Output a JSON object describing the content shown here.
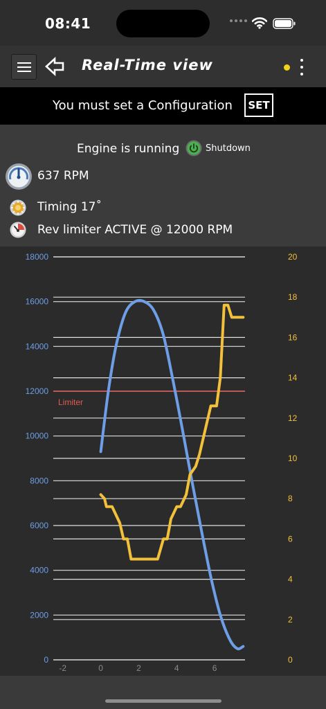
{
  "status_bar": {
    "time": "08:41",
    "icons": [
      "cellular-dots-icon",
      "wifi-icon",
      "battery-icon"
    ]
  },
  "header": {
    "title": "Real-Time view",
    "menu_icon": "hamburger-menu-icon",
    "back_icon": "back-arrow-icon",
    "status_dot_color": "#f2d21b",
    "more_icon": "kebab-menu-icon"
  },
  "config_banner": {
    "message": "You must set a Configuration",
    "set_label": "SET"
  },
  "engine": {
    "status": "Engine is running",
    "shutdown_label": "Shutdown",
    "shutdown_icon": "power-icon",
    "rpm_text": "637 RPM",
    "rpm_icon": "gauge-icon",
    "timing_text": "Timing 17˚",
    "timing_icon": "timing-gear-icon",
    "limiter_text": "Rev limiter ACTIVE @ 12000 RPM",
    "limiter_icon": "rev-limiter-icon"
  },
  "colors": {
    "rpm_series": "#6e9ee6",
    "timing_series": "#f2c03a",
    "limiter_line": "#e05a55",
    "grid": "#e0e0e0",
    "power_green": "#4caf50"
  },
  "chart_data": {
    "type": "line",
    "xlim": [
      -2.5,
      7.6
    ],
    "x_ticks": [
      -2,
      0,
      2,
      4,
      6
    ],
    "y_left": {
      "lim": [
        0,
        18000
      ],
      "ticks": [
        0,
        2000,
        4000,
        6000,
        8000,
        10000,
        12000,
        14000,
        16000,
        18000
      ]
    },
    "y_right": {
      "lim": [
        0,
        20
      ],
      "ticks": [
        0,
        2,
        4,
        6,
        8,
        10,
        12,
        14,
        16,
        18,
        20
      ]
    },
    "grid": true,
    "reference_line": {
      "label": "Limiter",
      "value": 12000,
      "axis": "left"
    },
    "series": [
      {
        "axis": "left",
        "points": [
          [
            0.0,
            9300
          ],
          [
            0.4,
            12000
          ],
          [
            0.8,
            14000
          ],
          [
            1.3,
            15500
          ],
          [
            1.8,
            16000
          ],
          [
            2.3,
            16000
          ],
          [
            2.8,
            15600
          ],
          [
            3.3,
            14500
          ],
          [
            3.8,
            12500
          ],
          [
            4.3,
            10300
          ],
          [
            4.8,
            8000
          ],
          [
            5.3,
            5800
          ],
          [
            5.8,
            3700
          ],
          [
            6.3,
            2000
          ],
          [
            6.8,
            900
          ],
          [
            7.2,
            500
          ],
          [
            7.5,
            600
          ]
        ]
      },
      {
        "axis": "right",
        "points": [
          [
            0.0,
            8.2
          ],
          [
            0.2,
            8.0
          ],
          [
            0.3,
            7.6
          ],
          [
            0.6,
            7.6
          ],
          [
            0.8,
            7.2
          ],
          [
            1.0,
            6.8
          ],
          [
            1.2,
            6.0
          ],
          [
            1.4,
            6.0
          ],
          [
            1.6,
            5.0
          ],
          [
            3.0,
            5.0
          ],
          [
            3.3,
            6.0
          ],
          [
            3.5,
            6.0
          ],
          [
            3.7,
            7.0
          ],
          [
            4.0,
            7.6
          ],
          [
            4.2,
            7.6
          ],
          [
            4.5,
            8.2
          ],
          [
            4.7,
            9.2
          ],
          [
            5.0,
            9.6
          ],
          [
            5.2,
            10.2
          ],
          [
            5.6,
            11.8
          ],
          [
            5.8,
            12.6
          ],
          [
            6.1,
            12.6
          ],
          [
            6.3,
            14.0
          ],
          [
            6.5,
            17.6
          ],
          [
            6.7,
            17.6
          ],
          [
            6.9,
            17.0
          ],
          [
            7.5,
            17.0
          ]
        ]
      }
    ]
  }
}
